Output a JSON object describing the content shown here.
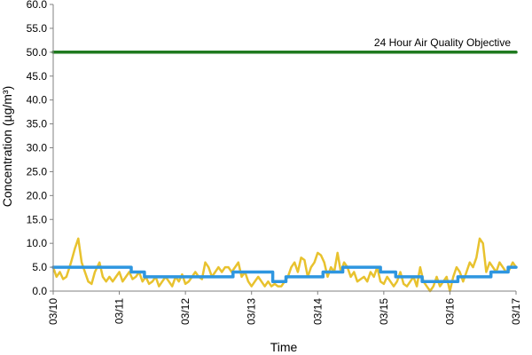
{
  "chart_data": {
    "type": "line",
    "xlabel": "Time",
    "ylabel": "Concentration (µg/m³)",
    "ylim": [
      0,
      60
    ],
    "y_ticks": [
      "0.0",
      "5.0",
      "10.0",
      "15.0",
      "20.0",
      "25.0",
      "30.0",
      "35.0",
      "40.0",
      "45.0",
      "50.0",
      "55.0",
      "60.0"
    ],
    "x_ticks": [
      "03/10",
      "03/11",
      "03/12",
      "03/13",
      "03/14",
      "03/15",
      "03/16",
      "03/17"
    ],
    "x_range_days": [
      0,
      7
    ],
    "grid": false,
    "annotation": {
      "text": "24 Hour Air Quality Objective",
      "y": 50
    },
    "series": [
      {
        "color": "#1F7A1F",
        "values": [
          [
            0,
            50
          ],
          [
            7,
            50
          ]
        ]
      },
      {
        "color": "#E8C22E",
        "values": [
          [
            0,
            5
          ],
          [
            0.05,
            3
          ],
          [
            0.1,
            4
          ],
          [
            0.15,
            2.5
          ],
          [
            0.2,
            3
          ],
          [
            0.27,
            6
          ],
          [
            0.33,
            9
          ],
          [
            0.38,
            11
          ],
          [
            0.43,
            6
          ],
          [
            0.48,
            4
          ],
          [
            0.53,
            2
          ],
          [
            0.58,
            1.5
          ],
          [
            0.63,
            4
          ],
          [
            0.7,
            6
          ],
          [
            0.75,
            3
          ],
          [
            0.8,
            2
          ],
          [
            0.85,
            3
          ],
          [
            0.9,
            2
          ],
          [
            0.95,
            3
          ],
          [
            1.0,
            4
          ],
          [
            1.05,
            2
          ],
          [
            1.1,
            3
          ],
          [
            1.15,
            4
          ],
          [
            1.2,
            2.5
          ],
          [
            1.25,
            3
          ],
          [
            1.3,
            4
          ],
          [
            1.35,
            2
          ],
          [
            1.4,
            3
          ],
          [
            1.45,
            1.5
          ],
          [
            1.5,
            2
          ],
          [
            1.55,
            3
          ],
          [
            1.6,
            1
          ],
          [
            1.65,
            2
          ],
          [
            1.7,
            3
          ],
          [
            1.75,
            2
          ],
          [
            1.8,
            1
          ],
          [
            1.85,
            3
          ],
          [
            1.9,
            2
          ],
          [
            1.95,
            3.5
          ],
          [
            2.0,
            1.5
          ],
          [
            2.05,
            2
          ],
          [
            2.1,
            3
          ],
          [
            2.15,
            4
          ],
          [
            2.2,
            3
          ],
          [
            2.25,
            2.5
          ],
          [
            2.3,
            6
          ],
          [
            2.35,
            5
          ],
          [
            2.4,
            3
          ],
          [
            2.45,
            4
          ],
          [
            2.5,
            5
          ],
          [
            2.55,
            4
          ],
          [
            2.6,
            5
          ],
          [
            2.65,
            5
          ],
          [
            2.7,
            4
          ],
          [
            2.75,
            5
          ],
          [
            2.8,
            6
          ],
          [
            2.85,
            3
          ],
          [
            2.9,
            4
          ],
          [
            2.95,
            2
          ],
          [
            3.0,
            1
          ],
          [
            3.05,
            2
          ],
          [
            3.1,
            3
          ],
          [
            3.15,
            2
          ],
          [
            3.2,
            1
          ],
          [
            3.25,
            2
          ],
          [
            3.3,
            1
          ],
          [
            3.35,
            1.5
          ],
          [
            3.4,
            1
          ],
          [
            3.45,
            1
          ],
          [
            3.5,
            2
          ],
          [
            3.55,
            3
          ],
          [
            3.6,
            5
          ],
          [
            3.65,
            6
          ],
          [
            3.7,
            4
          ],
          [
            3.75,
            7
          ],
          [
            3.8,
            6.5
          ],
          [
            3.85,
            3
          ],
          [
            3.9,
            5
          ],
          [
            3.95,
            6
          ],
          [
            4.0,
            8
          ],
          [
            4.05,
            7.5
          ],
          [
            4.1,
            6
          ],
          [
            4.15,
            3
          ],
          [
            4.2,
            5
          ],
          [
            4.25,
            4
          ],
          [
            4.3,
            8
          ],
          [
            4.35,
            4
          ],
          [
            4.4,
            6
          ],
          [
            4.45,
            5
          ],
          [
            4.5,
            3
          ],
          [
            4.55,
            4
          ],
          [
            4.6,
            2
          ],
          [
            4.65,
            2.5
          ],
          [
            4.7,
            3
          ],
          [
            4.75,
            2
          ],
          [
            4.8,
            4
          ],
          [
            4.85,
            3
          ],
          [
            4.9,
            5
          ],
          [
            4.95,
            2
          ],
          [
            5.0,
            1.5
          ],
          [
            5.05,
            3
          ],
          [
            5.1,
            2
          ],
          [
            5.15,
            1
          ],
          [
            5.2,
            2
          ],
          [
            5.25,
            4
          ],
          [
            5.3,
            1.5
          ],
          [
            5.35,
            1
          ],
          [
            5.4,
            2
          ],
          [
            5.45,
            3
          ],
          [
            5.5,
            1
          ],
          [
            5.55,
            5
          ],
          [
            5.6,
            2
          ],
          [
            5.65,
            1
          ],
          [
            5.7,
            0
          ],
          [
            5.75,
            1
          ],
          [
            5.8,
            3
          ],
          [
            5.85,
            1
          ],
          [
            5.9,
            2
          ],
          [
            5.95,
            3
          ],
          [
            6.0,
            0
          ],
          [
            6.05,
            3
          ],
          [
            6.1,
            5
          ],
          [
            6.15,
            4
          ],
          [
            6.2,
            2
          ],
          [
            6.25,
            4
          ],
          [
            6.3,
            6
          ],
          [
            6.35,
            5
          ],
          [
            6.4,
            7
          ],
          [
            6.45,
            11
          ],
          [
            6.5,
            10
          ],
          [
            6.55,
            4
          ],
          [
            6.6,
            6
          ],
          [
            6.65,
            5
          ],
          [
            6.7,
            4
          ],
          [
            6.75,
            6
          ],
          [
            6.8,
            5
          ],
          [
            6.85,
            4
          ],
          [
            6.9,
            4.5
          ],
          [
            6.95,
            6
          ],
          [
            7.0,
            5
          ]
        ]
      },
      {
        "color": "#2E96E0",
        "values": [
          [
            0,
            5
          ],
          [
            0.62,
            5
          ],
          [
            0.62,
            5
          ],
          [
            1.18,
            5
          ],
          [
            1.18,
            4
          ],
          [
            1.38,
            4
          ],
          [
            1.38,
            3
          ],
          [
            2.18,
            3
          ],
          [
            2.18,
            3
          ],
          [
            2.72,
            3
          ],
          [
            2.72,
            4
          ],
          [
            3.32,
            4
          ],
          [
            3.32,
            2
          ],
          [
            3.52,
            2
          ],
          [
            3.52,
            3
          ],
          [
            4.08,
            3
          ],
          [
            4.08,
            4
          ],
          [
            4.38,
            4
          ],
          [
            4.38,
            5
          ],
          [
            4.95,
            5
          ],
          [
            4.95,
            4
          ],
          [
            5.18,
            4
          ],
          [
            5.18,
            3
          ],
          [
            5.58,
            3
          ],
          [
            5.58,
            2
          ],
          [
            6.12,
            2
          ],
          [
            6.12,
            3
          ],
          [
            6.62,
            3
          ],
          [
            6.62,
            4
          ],
          [
            6.88,
            4
          ],
          [
            6.88,
            5
          ],
          [
            7.0,
            5
          ]
        ]
      }
    ]
  }
}
